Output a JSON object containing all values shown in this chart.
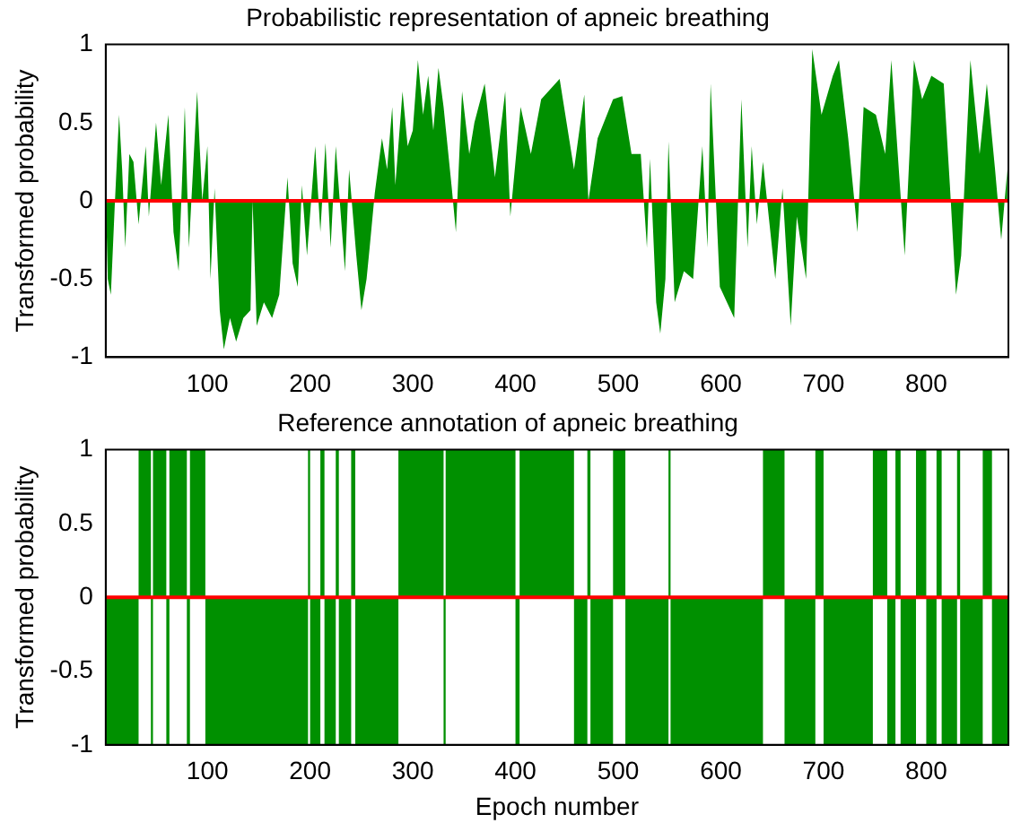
{
  "chart_data": [
    {
      "type": "area",
      "title": "Probabilistic representation of apneic breathing",
      "ylabel": "Transformed probability",
      "xlim": [
        1,
        880
      ],
      "xticks": [
        100,
        200,
        300,
        400,
        500,
        600,
        700,
        800
      ],
      "ylim": [
        -1,
        1
      ],
      "yticks": [
        -1,
        -0.5,
        0,
        0.5,
        1
      ],
      "ref_lines": [
        {
          "axis": "y",
          "value": 0,
          "color": "#ff0000"
        }
      ],
      "series": [
        {
          "color": "#009000",
          "x": [
            1,
            3,
            6,
            10,
            14,
            17,
            20,
            24,
            28,
            33,
            40,
            43,
            50,
            55,
            62,
            67,
            72,
            78,
            82,
            90,
            95,
            100,
            103,
            107,
            112,
            116,
            122,
            128,
            135,
            142,
            144,
            148,
            155,
            163,
            170,
            178,
            183,
            188,
            192,
            197,
            205,
            210,
            215,
            220,
            225,
            230,
            234,
            238,
            245,
            250,
            255,
            258,
            263,
            270,
            275,
            280,
            283,
            290,
            295,
            300,
            305,
            310,
            315,
            320,
            325,
            330,
            338,
            342,
            348,
            355,
            360,
            370,
            380,
            390,
            395,
            405,
            415,
            425,
            443,
            457,
            467,
            471,
            480,
            495,
            504,
            513,
            522,
            528,
            531,
            537,
            541,
            546,
            549,
            555,
            564,
            573,
            582,
            587,
            590,
            599,
            613,
            620,
            626,
            630,
            635,
            641,
            653,
            660,
            668,
            674,
            683,
            689,
            698,
            709,
            715,
            724,
            733,
            739,
            751,
            760,
            766,
            779,
            788,
            796,
            805,
            817,
            823,
            829,
            834,
            839,
            843,
            852,
            859,
            867,
            873,
            879
          ],
          "values": [
            0.05,
            -0.5,
            -0.6,
            0,
            0.55,
            0.2,
            -0.3,
            0.3,
            0.25,
            -0.15,
            0.35,
            -0.1,
            0.5,
            0.1,
            0.55,
            -0.2,
            -0.45,
            0.6,
            -0.3,
            0.7,
            0,
            0.35,
            -0.5,
            0.08,
            -0.7,
            -0.95,
            -0.75,
            -0.9,
            -0.75,
            -0.7,
            0,
            -0.8,
            -0.65,
            -0.75,
            -0.6,
            0.15,
            -0.4,
            -0.55,
            0.1,
            -0.35,
            0.35,
            -0.2,
            0.37,
            -0.3,
            0.35,
            -0.1,
            -0.45,
            0.2,
            -0.35,
            -0.7,
            -0.5,
            -0.3,
            0.05,
            0.4,
            0.2,
            0.6,
            0.1,
            0.7,
            0.35,
            0.45,
            0.9,
            0.55,
            0.8,
            0.45,
            0.85,
            0.6,
            0.08,
            -0.2,
            0.7,
            0.3,
            0.5,
            0.75,
            0.15,
            0.7,
            -0.1,
            0.6,
            0.3,
            0.65,
            0.78,
            0.2,
            0.68,
            0,
            0.4,
            0.65,
            0.67,
            0.3,
            0.3,
            -0.3,
            0.27,
            -0.65,
            -0.85,
            -0.5,
            0.38,
            -0.65,
            -0.45,
            -0.5,
            0.35,
            -0.3,
            0.75,
            -0.55,
            -0.75,
            0.65,
            -0.3,
            0.35,
            -0.15,
            0.25,
            -0.5,
            0.08,
            -0.8,
            -0.1,
            -0.5,
            0.97,
            0.55,
            0.8,
            0.9,
            0.4,
            -0.2,
            0.6,
            0.55,
            0.3,
            0.9,
            -0.35,
            0.9,
            0.65,
            0.8,
            0.75,
            0.1,
            -0.6,
            -0.35,
            0.35,
            0.9,
            0.3,
            0.75,
            0.2,
            -0.25,
            0.2
          ]
        }
      ]
    },
    {
      "type": "area",
      "title": "Reference annotation of apneic breathing",
      "xlabel": "Epoch number",
      "ylabel": "Transformed probability",
      "xlim": [
        1,
        880
      ],
      "xticks": [
        100,
        200,
        300,
        400,
        500,
        600,
        700,
        800
      ],
      "ylim": [
        -1,
        1
      ],
      "yticks": [
        -1,
        -0.5,
        0,
        0.5,
        1
      ],
      "ref_lines": [
        {
          "axis": "y",
          "value": 0,
          "color": "#ff0000"
        }
      ],
      "series": [
        {
          "color": "#009000",
          "x": [
            1,
            33,
            33,
            45,
            45,
            47,
            47,
            60,
            60,
            63,
            63,
            80,
            80,
            83,
            83,
            98,
            98,
            198,
            198,
            200,
            200,
            210,
            210,
            214,
            214,
            225,
            225,
            228,
            228,
            240,
            240,
            244,
            244,
            286,
            286,
            330,
            330,
            332,
            332,
            400,
            400,
            404,
            404,
            457,
            457,
            470,
            470,
            473,
            473,
            495,
            495,
            507,
            507,
            549,
            549,
            551,
            551,
            641,
            641,
            662,
            662,
            692,
            692,
            700,
            700,
            748,
            748,
            762,
            762,
            770,
            770,
            775,
            775,
            790,
            790,
            800,
            800,
            810,
            810,
            815,
            815,
            830,
            830,
            833,
            833,
            855,
            855,
            864,
            864,
            880
          ],
          "values": [
            -1,
            -1,
            1,
            1,
            -1,
            -1,
            1,
            1,
            -1,
            -1,
            1,
            1,
            -1,
            -1,
            1,
            1,
            -1,
            -1,
            1,
            1,
            -1,
            -1,
            1,
            1,
            -1,
            -1,
            1,
            1,
            -1,
            -1,
            1,
            1,
            -1,
            -1,
            1,
            1,
            -1,
            -1,
            1,
            1,
            -1,
            -1,
            1,
            1,
            -1,
            -1,
            1,
            1,
            -1,
            -1,
            1,
            1,
            -1,
            -1,
            1,
            1,
            -1,
            -1,
            1,
            1,
            -1,
            -1,
            1,
            1,
            -1,
            -1,
            1,
            1,
            -1,
            -1,
            1,
            1,
            -1,
            -1,
            1,
            1,
            -1,
            -1,
            1,
            1,
            -1,
            -1,
            1,
            1,
            -1,
            -1,
            1,
            1,
            -1,
            -1
          ]
        }
      ]
    }
  ]
}
